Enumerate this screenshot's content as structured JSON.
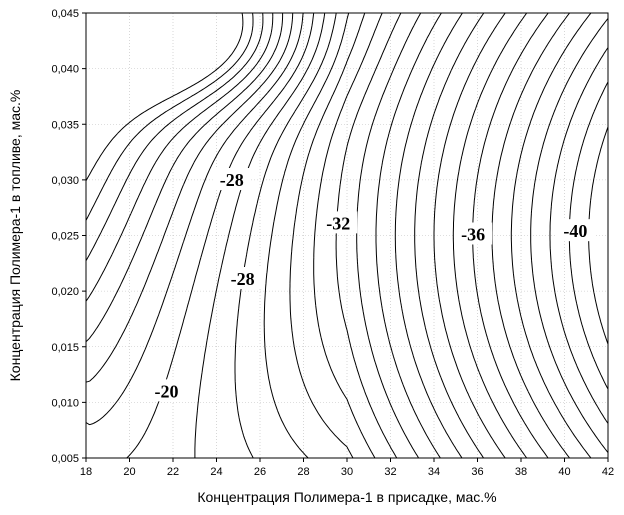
{
  "chart_data": {
    "type": "contour",
    "xlabel": "Концентрация Полимера-1 в присадке, мас.%",
    "ylabel": "Концентрация Полимера-1 в топливе, мас.%",
    "xlim": [
      18,
      42
    ],
    "ylim": [
      0.005,
      0.045
    ],
    "x_ticks": [
      "18",
      "20",
      "22",
      "24",
      "26",
      "28",
      "30",
      "32",
      "34",
      "36",
      "38",
      "40",
      "42"
    ],
    "y_ticks": [
      "0,005",
      "0,010",
      "0,015",
      "0,020",
      "0,025",
      "0,030",
      "0,035",
      "0,040",
      "0,045"
    ],
    "grid": true,
    "contour_interval": 1,
    "contour_levels": [
      -14,
      -15,
      -16,
      -17,
      -18,
      -19,
      -20,
      -21,
      -22,
      -23,
      -24,
      -25,
      -26,
      -27,
      -28,
      -29,
      -30,
      -31,
      -32,
      -33,
      -34,
      -35,
      -36,
      -37,
      -38,
      -39,
      -40,
      -41
    ],
    "labels": [
      {
        "text": "-20",
        "x": 21.7,
        "y": 0.0109
      },
      {
        "text": "-28",
        "x": 24.7,
        "y": 0.0299
      },
      {
        "text": "-28",
        "x": 25.2,
        "y": 0.021
      },
      {
        "text": "-32",
        "x": 29.6,
        "y": 0.026
      },
      {
        "text": "-36",
        "x": 35.8,
        "y": 0.025
      },
      {
        "text": "-40",
        "x": 40.5,
        "y": 0.0253
      }
    ]
  }
}
